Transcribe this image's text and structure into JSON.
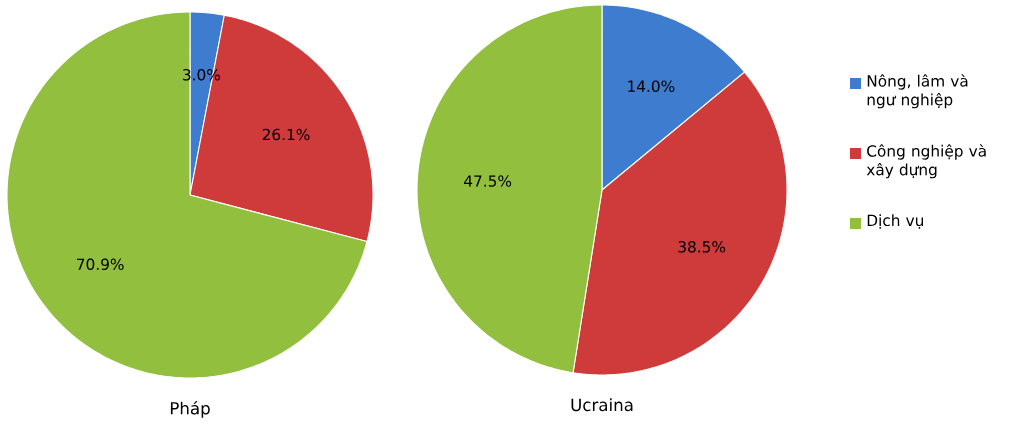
{
  "chart_data": [
    {
      "type": "pie",
      "title": "Pháp",
      "categories": [
        "Nông, lâm và ngư nghiệp",
        "Công nghiệp và xây dựng",
        "Dịch vụ"
      ],
      "values": [
        3.0,
        26.1,
        70.9
      ],
      "colors": [
        "#3e7cd0",
        "#cf3a3a",
        "#92c03e"
      ],
      "value_labels": [
        "3.0%",
        "26.1%",
        "70.9%"
      ],
      "legend": "right"
    },
    {
      "type": "pie",
      "title": "Ucraina",
      "categories": [
        null,
        null,
        null
      ],
      "values": [
        14.0,
        38.5,
        47.5
      ],
      "colors": [
        "#3e7cd0",
        "#cf3a3a",
        "#92c03e"
      ],
      "value_labels": [
        "14.0%",
        "38.5%",
        "47.5%"
      ]
    }
  ]
}
